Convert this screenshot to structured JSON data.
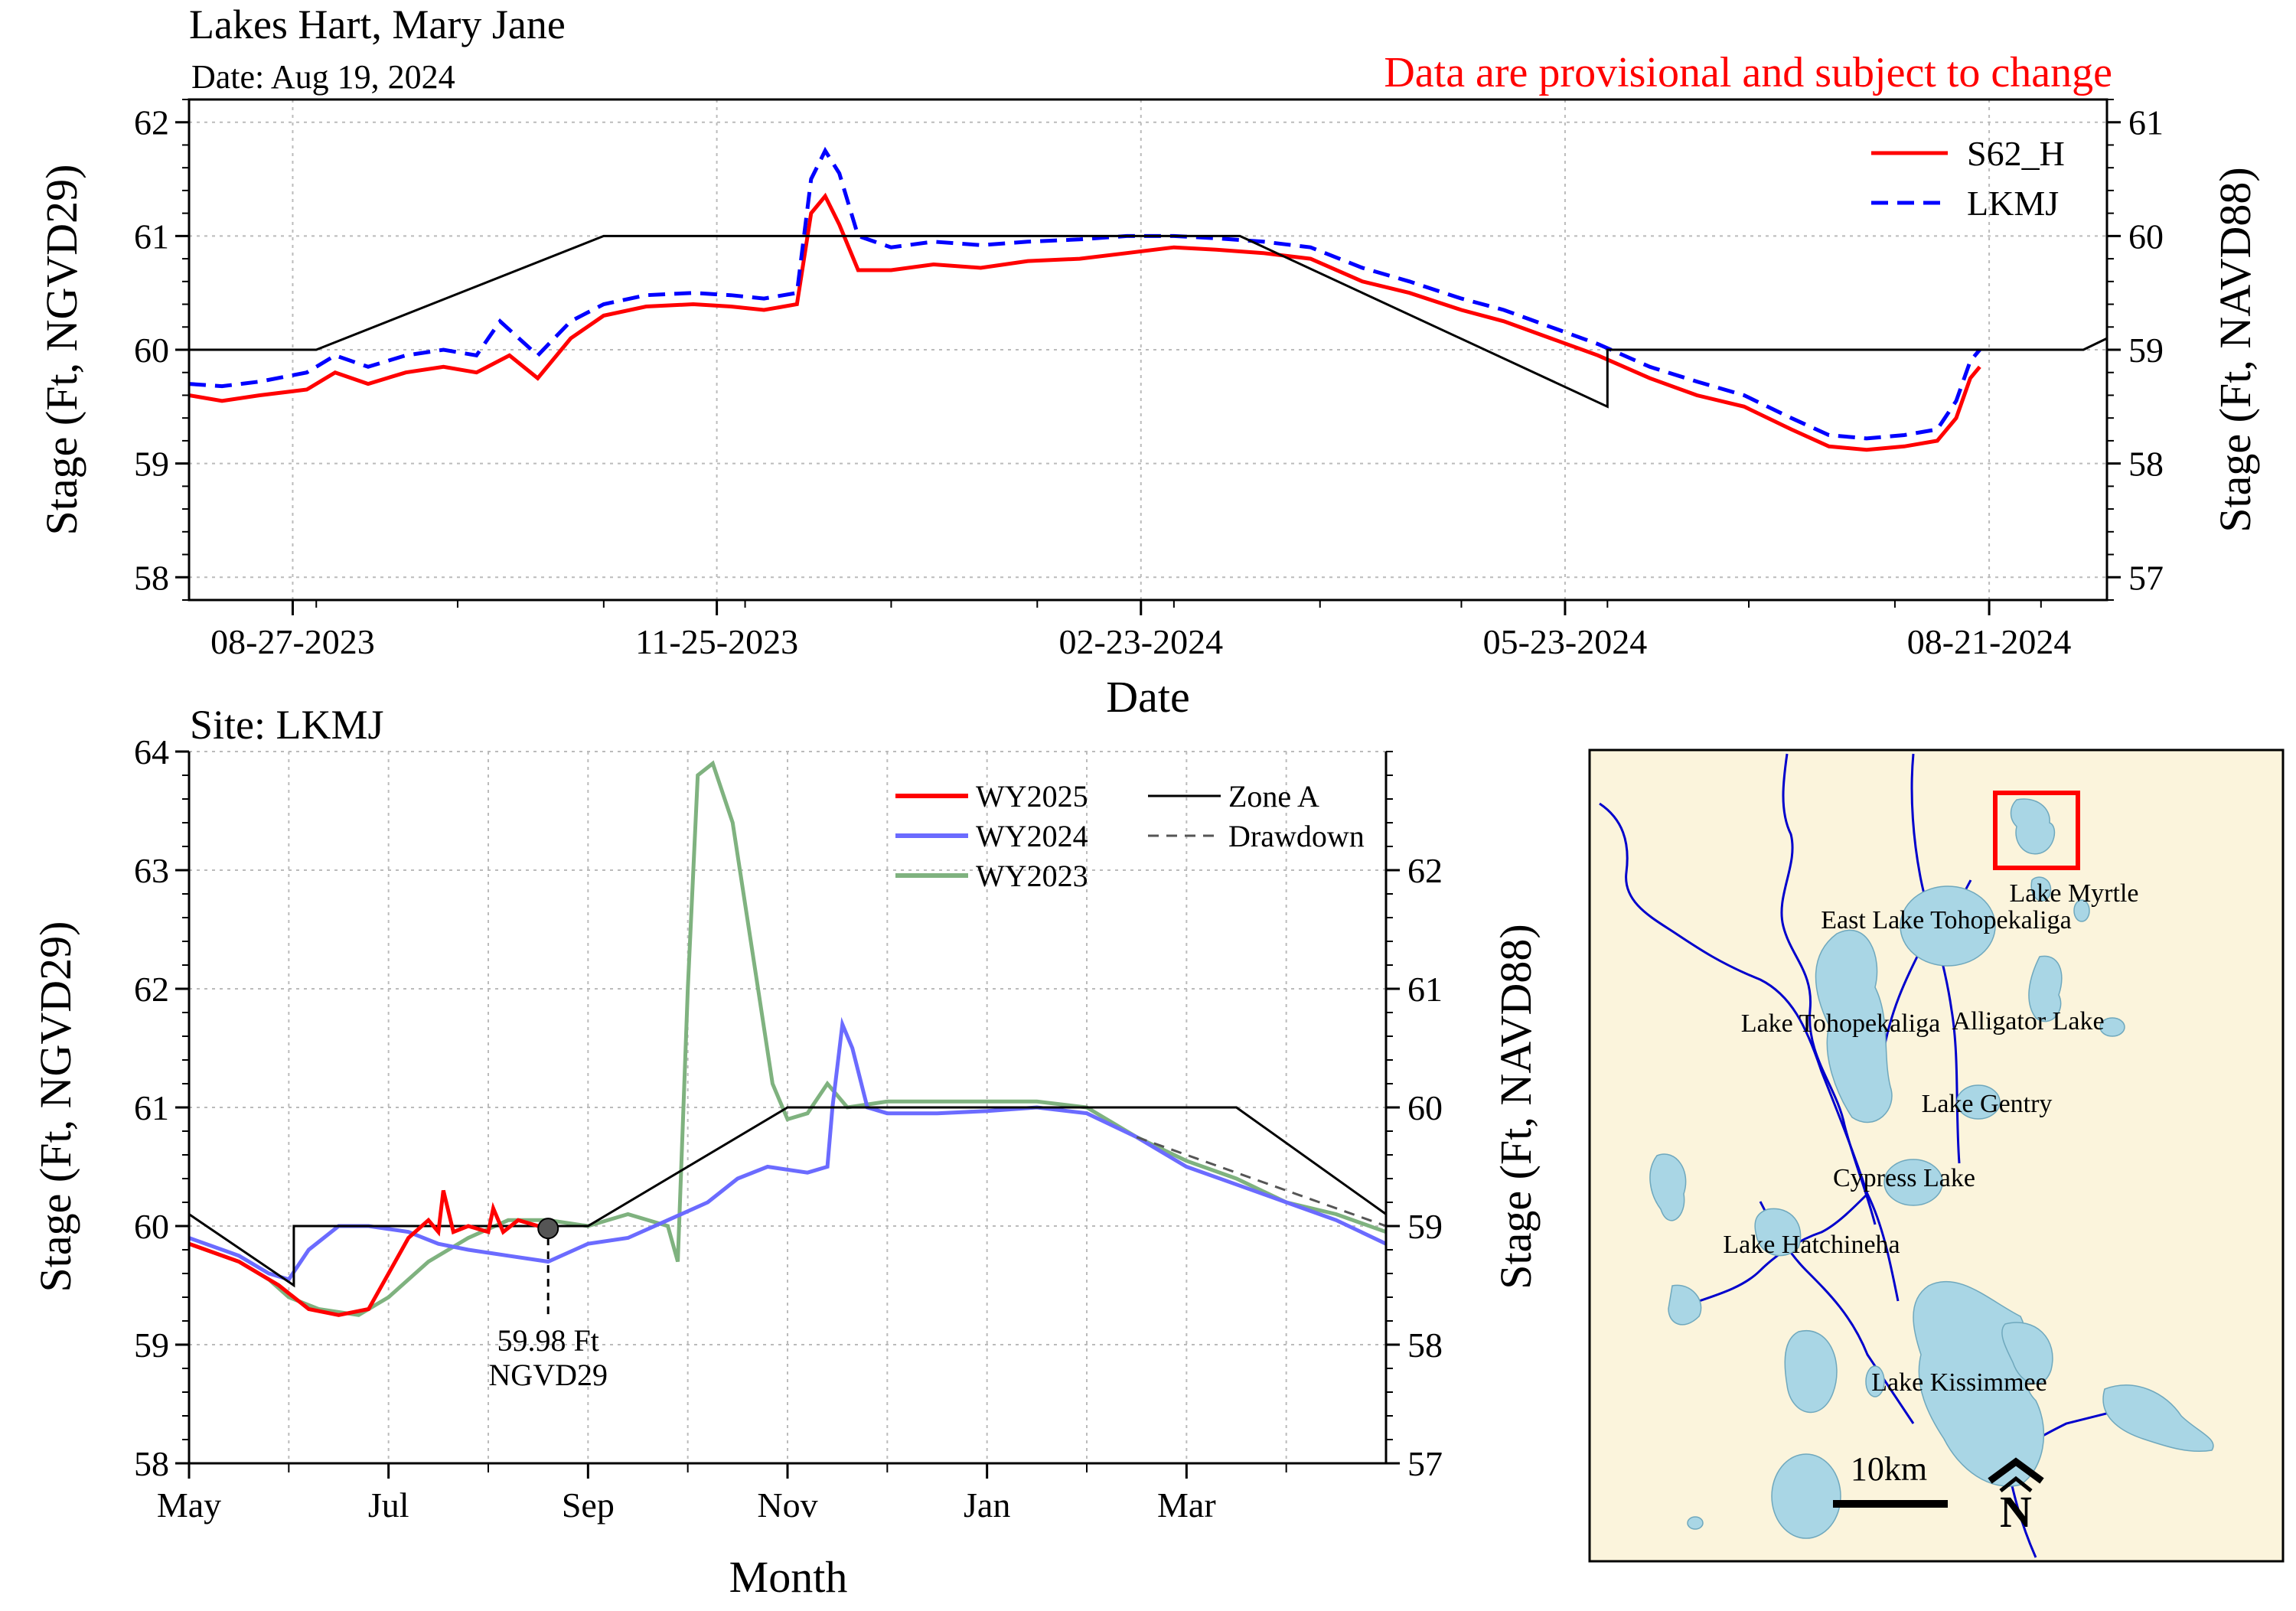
{
  "header": {
    "title": "Lakes Hart, Mary Jane",
    "date": "Date: Aug 19, 2024",
    "provisional": "Data are provisional and subject to change"
  },
  "chart_data": [
    {
      "type": "line",
      "xlabel": "Date",
      "ylabel": "Stage (Ft, NGVD29)",
      "ylabel_right": "Stage (Ft, NAVD88)",
      "xlim": [
        "2023-08-05",
        "2024-09-15"
      ],
      "ylim": [
        57.8,
        62.2
      ],
      "ylim_right": [
        56.8,
        61.2
      ],
      "x_ticks": [
        "08-27-2023",
        "11-25-2023",
        "02-23-2024",
        "05-23-2024",
        "08-21-2024"
      ],
      "x_tick_dates": [
        "2023-08-27",
        "2023-11-25",
        "2024-02-23",
        "2024-05-23",
        "2024-08-21"
      ],
      "y_ticks": [
        58,
        59,
        60,
        61,
        62
      ],
      "y_ticks_right": [
        57,
        58,
        59,
        60,
        61
      ],
      "grid": true,
      "legend_position": "top-right",
      "series": [
        {
          "name": "S62_H",
          "color": "#ff0000",
          "style": "solid",
          "points": [
            [
              "2023-08-05",
              59.6
            ],
            [
              "2023-08-12",
              59.55
            ],
            [
              "2023-08-20",
              59.6
            ],
            [
              "2023-08-30",
              59.65
            ],
            [
              "2023-09-05",
              59.8
            ],
            [
              "2023-09-12",
              59.7
            ],
            [
              "2023-09-20",
              59.8
            ],
            [
              "2023-09-28",
              59.85
            ],
            [
              "2023-10-05",
              59.8
            ],
            [
              "2023-10-12",
              59.95
            ],
            [
              "2023-10-18",
              59.75
            ],
            [
              "2023-10-25",
              60.1
            ],
            [
              "2023-11-01",
              60.3
            ],
            [
              "2023-11-10",
              60.38
            ],
            [
              "2023-11-20",
              60.4
            ],
            [
              "2023-11-28",
              60.38
            ],
            [
              "2023-12-05",
              60.35
            ],
            [
              "2023-12-12",
              60.4
            ],
            [
              "2023-12-15",
              61.2
            ],
            [
              "2023-12-18",
              61.35
            ],
            [
              "2023-12-21",
              61.1
            ],
            [
              "2023-12-25",
              60.7
            ],
            [
              "2024-01-01",
              60.7
            ],
            [
              "2024-01-10",
              60.75
            ],
            [
              "2024-01-20",
              60.72
            ],
            [
              "2024-01-30",
              60.78
            ],
            [
              "2024-02-10",
              60.8
            ],
            [
              "2024-02-20",
              60.85
            ],
            [
              "2024-03-01",
              60.9
            ],
            [
              "2024-03-10",
              60.88
            ],
            [
              "2024-03-20",
              60.85
            ],
            [
              "2024-03-30",
              60.8
            ],
            [
              "2024-04-10",
              60.6
            ],
            [
              "2024-04-20",
              60.5
            ],
            [
              "2024-05-01",
              60.35
            ],
            [
              "2024-05-10",
              60.25
            ],
            [
              "2024-05-20",
              60.1
            ],
            [
              "2024-05-30",
              59.95
            ],
            [
              "2024-06-10",
              59.75
            ],
            [
              "2024-06-20",
              59.6
            ],
            [
              "2024-06-30",
              59.5
            ],
            [
              "2024-07-10",
              59.3
            ],
            [
              "2024-07-18",
              59.15
            ],
            [
              "2024-07-26",
              59.12
            ],
            [
              "2024-08-03",
              59.15
            ],
            [
              "2024-08-10",
              59.2
            ],
            [
              "2024-08-14",
              59.4
            ],
            [
              "2024-08-17",
              59.75
            ],
            [
              "2024-08-19",
              59.85
            ]
          ]
        },
        {
          "name": "LKMJ",
          "color": "#0000ff",
          "style": "dashed",
          "points": [
            [
              "2023-08-05",
              59.7
            ],
            [
              "2023-08-12",
              59.68
            ],
            [
              "2023-08-20",
              59.72
            ],
            [
              "2023-08-30",
              59.8
            ],
            [
              "2023-09-05",
              59.95
            ],
            [
              "2023-09-12",
              59.85
            ],
            [
              "2023-09-20",
              59.95
            ],
            [
              "2023-09-28",
              60.0
            ],
            [
              "2023-10-05",
              59.95
            ],
            [
              "2023-10-10",
              60.25
            ],
            [
              "2023-10-18",
              59.95
            ],
            [
              "2023-10-25",
              60.25
            ],
            [
              "2023-11-01",
              60.4
            ],
            [
              "2023-11-10",
              60.48
            ],
            [
              "2023-11-20",
              60.5
            ],
            [
              "2023-11-28",
              60.48
            ],
            [
              "2023-12-05",
              60.45
            ],
            [
              "2023-12-12",
              60.5
            ],
            [
              "2023-12-15",
              61.5
            ],
            [
              "2023-12-18",
              61.75
            ],
            [
              "2023-12-21",
              61.55
            ],
            [
              "2023-12-25",
              61.0
            ],
            [
              "2024-01-01",
              60.9
            ],
            [
              "2024-01-10",
              60.95
            ],
            [
              "2024-01-20",
              60.92
            ],
            [
              "2024-01-30",
              60.95
            ],
            [
              "2024-02-10",
              60.97
            ],
            [
              "2024-02-20",
              61.0
            ],
            [
              "2024-03-01",
              61.0
            ],
            [
              "2024-03-10",
              60.98
            ],
            [
              "2024-03-20",
              60.95
            ],
            [
              "2024-03-30",
              60.9
            ],
            [
              "2024-04-10",
              60.72
            ],
            [
              "2024-04-20",
              60.6
            ],
            [
              "2024-05-01",
              60.45
            ],
            [
              "2024-05-10",
              60.35
            ],
            [
              "2024-05-20",
              60.2
            ],
            [
              "2024-05-30",
              60.05
            ],
            [
              "2024-06-10",
              59.85
            ],
            [
              "2024-06-20",
              59.72
            ],
            [
              "2024-06-30",
              59.6
            ],
            [
              "2024-07-10",
              59.4
            ],
            [
              "2024-07-18",
              59.25
            ],
            [
              "2024-07-26",
              59.22
            ],
            [
              "2024-08-03",
              59.25
            ],
            [
              "2024-08-10",
              59.3
            ],
            [
              "2024-08-14",
              59.55
            ],
            [
              "2024-08-17",
              59.9
            ],
            [
              "2024-08-19",
              60.0
            ]
          ]
        },
        {
          "name": "",
          "color": "#000000",
          "style": "solid",
          "points": [
            [
              "2023-08-05",
              60.0
            ],
            [
              "2023-09-01",
              60.0
            ],
            [
              "2023-11-01",
              61.0
            ],
            [
              "2024-03-15",
              61.0
            ],
            [
              "2024-06-01",
              59.5
            ],
            [
              "2024-06-01",
              60.0
            ],
            [
              "2024-09-10",
              60.0
            ],
            [
              "2024-09-15",
              60.1
            ]
          ]
        }
      ]
    },
    {
      "type": "line",
      "title": "Site: LKMJ",
      "xlabel": "Month",
      "ylabel": "Stage (Ft, NGVD29)",
      "ylabel_right": "Stage (Ft, NAVD88)",
      "xlim": [
        0,
        12
      ],
      "ylim": [
        58,
        64
      ],
      "ylim_right": [
        57,
        63
      ],
      "x_tick_positions": [
        0,
        2,
        4,
        6,
        8,
        10
      ],
      "x_ticks": [
        "May",
        "Jul",
        "Sep",
        "Nov",
        "Jan",
        "Mar"
      ],
      "y_ticks": [
        58,
        59,
        60,
        61,
        62,
        63,
        64
      ],
      "y_ticks_right": [
        57,
        58,
        59,
        60,
        61,
        62
      ],
      "grid": true,
      "legend_position": "top-right",
      "annotation": {
        "x": 3.6,
        "y": 59.98,
        "line1": "59.98 Ft",
        "line2": "NGVD29"
      },
      "series": [
        {
          "name": "WY2025",
          "color": "#ff0000",
          "style": "solid",
          "points": [
            [
              0,
              59.85
            ],
            [
              0.5,
              59.7
            ],
            [
              0.9,
              59.5
            ],
            [
              1.2,
              59.3
            ],
            [
              1.5,
              59.25
            ],
            [
              1.8,
              59.3
            ],
            [
              2.0,
              59.6
            ],
            [
              2.2,
              59.9
            ],
            [
              2.4,
              60.05
            ],
            [
              2.5,
              59.95
            ],
            [
              2.55,
              60.3
            ],
            [
              2.65,
              59.95
            ],
            [
              2.8,
              60.0
            ],
            [
              3.0,
              59.95
            ],
            [
              3.05,
              60.15
            ],
            [
              3.15,
              59.95
            ],
            [
              3.3,
              60.05
            ],
            [
              3.5,
              60.0
            ],
            [
              3.6,
              59.98
            ]
          ]
        },
        {
          "name": "WY2024",
          "color": "#6b6bff",
          "style": "solid",
          "points": [
            [
              0,
              59.9
            ],
            [
              0.5,
              59.75
            ],
            [
              0.8,
              59.6
            ],
            [
              1.0,
              59.55
            ],
            [
              1.2,
              59.8
            ],
            [
              1.5,
              60.0
            ],
            [
              1.8,
              60.0
            ],
            [
              2.2,
              59.95
            ],
            [
              2.5,
              59.85
            ],
            [
              2.8,
              59.8
            ],
            [
              3.2,
              59.75
            ],
            [
              3.6,
              59.7
            ],
            [
              4.0,
              59.85
            ],
            [
              4.4,
              59.9
            ],
            [
              4.8,
              60.05
            ],
            [
              5.2,
              60.2
            ],
            [
              5.5,
              60.4
            ],
            [
              5.8,
              60.5
            ],
            [
              6.2,
              60.45
            ],
            [
              6.4,
              60.5
            ],
            [
              6.45,
              61.0
            ],
            [
              6.55,
              61.7
            ],
            [
              6.65,
              61.5
            ],
            [
              6.8,
              61.0
            ],
            [
              7.0,
              60.95
            ],
            [
              7.5,
              60.95
            ],
            [
              8.0,
              60.97
            ],
            [
              8.5,
              61.0
            ],
            [
              9.0,
              60.95
            ],
            [
              9.5,
              60.75
            ],
            [
              10.0,
              60.5
            ],
            [
              10.5,
              60.35
            ],
            [
              11.0,
              60.2
            ],
            [
              11.5,
              60.05
            ],
            [
              12.0,
              59.85
            ]
          ]
        },
        {
          "name": "WY2023",
          "color": "#7fb27f",
          "style": "solid",
          "points": [
            [
              0,
              59.85
            ],
            [
              0.5,
              59.7
            ],
            [
              0.8,
              59.55
            ],
            [
              1.0,
              59.4
            ],
            [
              1.3,
              59.3
            ],
            [
              1.7,
              59.25
            ],
            [
              2.0,
              59.4
            ],
            [
              2.4,
              59.7
            ],
            [
              2.8,
              59.9
            ],
            [
              3.2,
              60.05
            ],
            [
              3.6,
              60.05
            ],
            [
              4.0,
              60.0
            ],
            [
              4.4,
              60.1
            ],
            [
              4.8,
              60.0
            ],
            [
              4.9,
              59.7
            ],
            [
              5.0,
              62.0
            ],
            [
              5.1,
              63.8
            ],
            [
              5.25,
              63.9
            ],
            [
              5.45,
              63.4
            ],
            [
              5.65,
              62.3
            ],
            [
              5.85,
              61.2
            ],
            [
              6.0,
              60.9
            ],
            [
              6.2,
              60.95
            ],
            [
              6.4,
              61.2
            ],
            [
              6.6,
              61.0
            ],
            [
              7.0,
              61.05
            ],
            [
              7.5,
              61.05
            ],
            [
              8.0,
              61.05
            ],
            [
              8.5,
              61.05
            ],
            [
              9.0,
              61.0
            ],
            [
              9.5,
              60.75
            ],
            [
              10.0,
              60.55
            ],
            [
              10.5,
              60.4
            ],
            [
              11.0,
              60.2
            ],
            [
              11.5,
              60.1
            ],
            [
              12.0,
              59.95
            ]
          ]
        },
        {
          "name": "Zone A",
          "color": "#000000",
          "style": "solid",
          "points": [
            [
              0,
              60.1
            ],
            [
              1.05,
              59.5
            ],
            [
              1.05,
              60.0
            ],
            [
              4.0,
              60.0
            ],
            [
              6.0,
              61.0
            ],
            [
              10.5,
              61.0
            ],
            [
              12.0,
              60.1
            ]
          ]
        },
        {
          "name": "Drawdown",
          "color": "#555555",
          "style": "dashed",
          "points": [
            [
              9.5,
              60.75
            ],
            [
              12.0,
              60.0
            ]
          ]
        }
      ]
    }
  ],
  "map": {
    "lakes": {
      "myrtle": "Lake Myrtle",
      "east_toho": "East Lake Tohopekaliga",
      "toho": "Lake Tohopekaliga",
      "alligator": "Alligator Lake",
      "gentry": "Lake Gentry",
      "cypress": "Cypress Lake",
      "hatchineha": "Lake Hatchineha",
      "kissimmee": "Lake Kissimmee"
    },
    "scale_label": "10km",
    "north_label": "N",
    "background_color": "#fbf4dc",
    "water_color": "#a9d6e5",
    "river_color": "#0000cc",
    "highlight_color": "#ff0000"
  }
}
